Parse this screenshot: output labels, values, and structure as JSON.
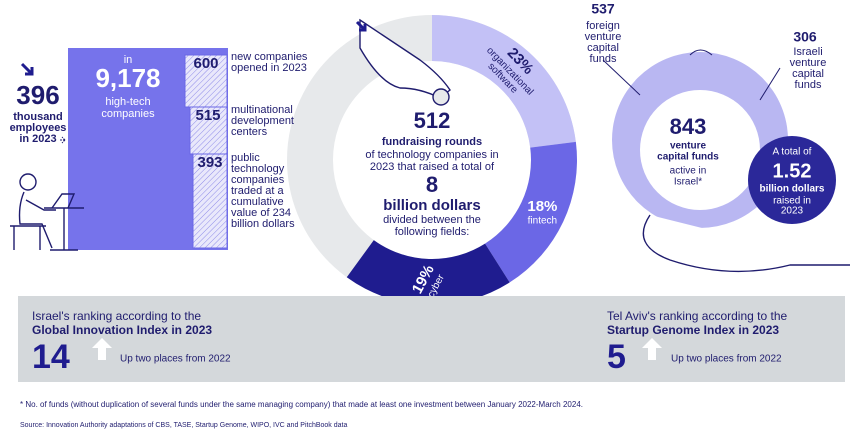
{
  "employees": {
    "value": "396",
    "lines": [
      "thousand",
      "employees",
      "in 2023"
    ]
  },
  "companies": {
    "intro": "in",
    "value": "9,178",
    "lines": [
      "high-tech",
      "companies"
    ]
  },
  "breakdown": [
    {
      "value": "600",
      "lines": [
        "new companies",
        "opened in 2023"
      ]
    },
    {
      "value": "515",
      "lines": [
        "multinational",
        "development",
        "centers"
      ]
    },
    {
      "value": "393",
      "lines": [
        "public",
        "technology",
        "companies",
        "traded at a",
        "cumulative",
        "value of 234",
        "billion dollars"
      ]
    }
  ],
  "fundraising": {
    "rounds": "512",
    "rounds_label": "fundraising rounds",
    "lines": [
      "of technology companies in",
      "2023 that raised a total of"
    ],
    "amount": "8",
    "amount_unit": "billion dollars",
    "lines2": [
      "divided between the",
      "following fields:"
    ]
  },
  "fields": {
    "values": [
      23,
      18,
      19
    ],
    "value_labels": [
      "23%",
      "18%",
      "19%"
    ],
    "labels": [
      [
        "organizational",
        "software"
      ],
      [
        "fintech"
      ],
      [
        "cyber"
      ]
    ],
    "colors": [
      "#c3c1f6",
      "#6b67e6",
      "#1f1c8f"
    ]
  },
  "funds": {
    "foreign": {
      "value": "537",
      "lines": [
        "foreign",
        "venture",
        "capital",
        "funds"
      ]
    },
    "israeli": {
      "value": "306",
      "lines": [
        "Israeli",
        "venture",
        "capital",
        "funds"
      ]
    },
    "total": {
      "value": "843",
      "lines": [
        "venture",
        "capital funds"
      ],
      "lines2": [
        "active in",
        "Israel*"
      ]
    },
    "raised": {
      "intro": "A total of",
      "value": "1.52",
      "lines": [
        "billion dollars"
      ],
      "lines2": [
        "raised in",
        "2023"
      ]
    }
  },
  "rankings": [
    {
      "intro": "Israel's ranking according to the",
      "index": "Global Innovation Index in 2023",
      "rank": "14",
      "change": "Up two places from 2022"
    },
    {
      "intro": "Tel Aviv's ranking according to the",
      "index": "Startup Genome Index in 2023",
      "rank": "5",
      "change": "Up two places from 2022"
    }
  ],
  "footnote": "* No. of funds (without duplication of several funds under the same managing company) that made at least one investment between January 2022-March 2024.",
  "source": "Source: Innovation Authority adaptations of CBS, TASE, Startup Genome, WIPO, IVC and PitchBook data"
}
